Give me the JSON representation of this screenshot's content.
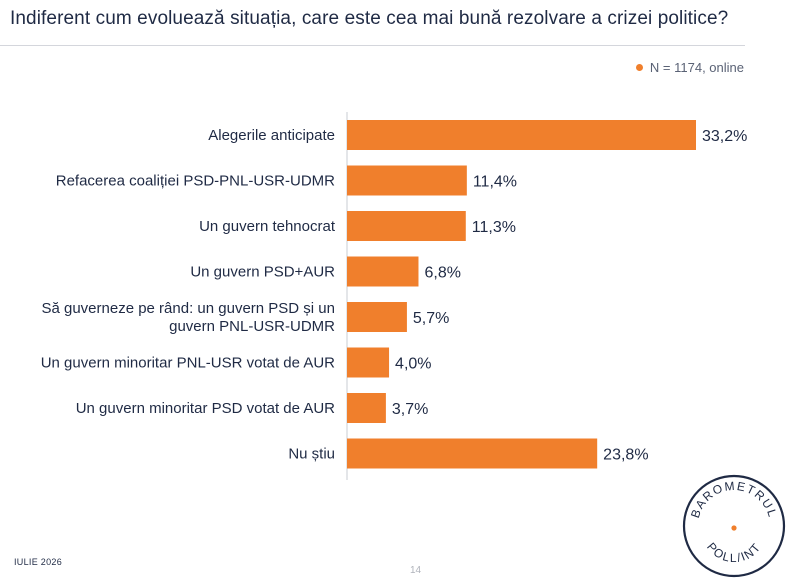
{
  "title": "Indiferent cum evoluează situația, care este cea mai bună rezolvare a crizei politice?",
  "legend": {
    "label": "N = 1174, online",
    "color": "#f07f2c"
  },
  "footer": {
    "date": "IULIE 2026",
    "page": "14"
  },
  "logo": {
    "top_text": "BAROMETRUL",
    "bottom_text": "POLL/INT"
  },
  "colors": {
    "bar": "#f07f2c",
    "text": "#1f2a44",
    "axis": "#c9ccd3"
  },
  "chart_data": {
    "type": "bar",
    "orientation": "horizontal",
    "title": "Indiferent cum evoluează situația, care este cea mai bună rezolvare a crizei politice?",
    "categories": [
      [
        "Alegerile anticipate"
      ],
      [
        "Refacerea coaliției PSD-PNL-USR-UDMR"
      ],
      [
        "Un guvern tehnocrat"
      ],
      [
        "Un guvern PSD+AUR"
      ],
      [
        "Să guverneze pe rând: un guvern PSD și un",
        "guvern PNL-USR-UDMR"
      ],
      [
        "Un guvern minoritar PNL-USR votat de AUR"
      ],
      [
        "Un guvern minoritar PSD votat de AUR"
      ],
      [
        "Nu știu"
      ]
    ],
    "values": [
      33.2,
      11.4,
      11.3,
      6.8,
      5.7,
      4.0,
      3.7,
      23.8
    ],
    "value_labels": [
      "33,2%",
      "11,4%",
      "11,3%",
      "6,8%",
      "5,7%",
      "4,0%",
      "3,7%",
      "23,8%"
    ],
    "series": [
      {
        "name": "N = 1174, online"
      }
    ],
    "legend_position": "top-right",
    "grid": false
  }
}
